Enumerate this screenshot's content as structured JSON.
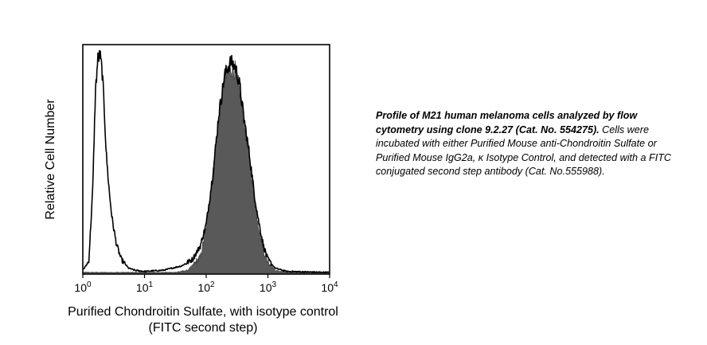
{
  "chart_data": {
    "type": "area",
    "xscale": "log",
    "xlim": [
      1,
      10000
    ],
    "ylim": [
      0,
      1
    ],
    "grid": false,
    "legend": "none",
    "xlabel_line1": "Purified Chondroitin Sulfate, with isotype control",
    "xlabel_line2": "(FITC second step)",
    "ylabel": "Relative Cell Number",
    "x_ticks": [
      {
        "value": 1,
        "base": "10",
        "exp": "0"
      },
      {
        "value": 10,
        "base": "10",
        "exp": "1"
      },
      {
        "value": 100,
        "base": "10",
        "exp": "2"
      },
      {
        "value": 1000,
        "base": "10",
        "exp": "3"
      },
      {
        "value": 10000,
        "base": "10",
        "exp": "4"
      }
    ],
    "series": [
      {
        "style": "filled",
        "color": "#595959",
        "x": [
          1,
          30,
          50,
          80,
          100,
          130,
          160,
          200,
          250,
          300,
          350,
          400,
          500,
          600,
          700,
          850,
          1000,
          1300,
          2000
        ],
        "y": [
          0,
          0,
          0.01,
          0.07,
          0.2,
          0.46,
          0.7,
          0.88,
          0.93,
          0.92,
          0.82,
          0.7,
          0.52,
          0.34,
          0.22,
          0.1,
          0.05,
          0.01,
          0
        ]
      },
      {
        "style": "outline",
        "color": "#000000",
        "x": [
          1,
          1.25,
          1.45,
          1.6,
          1.75,
          1.9,
          2.05,
          2.2,
          2.4,
          2.7,
          3.0,
          3.5,
          4.2,
          5.5,
          7,
          10,
          20,
          40,
          60,
          80,
          100,
          130,
          160,
          200,
          250,
          300,
          350,
          400,
          500,
          600,
          700,
          850,
          1000,
          1300,
          2000,
          10000
        ],
        "y": [
          0.01,
          0.05,
          0.38,
          0.82,
          0.97,
          0.99,
          0.92,
          0.78,
          0.54,
          0.36,
          0.24,
          0.13,
          0.06,
          0.02,
          0.01,
          0.005,
          0.01,
          0.03,
          0.06,
          0.12,
          0.22,
          0.46,
          0.72,
          0.9,
          0.96,
          0.93,
          0.85,
          0.72,
          0.54,
          0.36,
          0.24,
          0.12,
          0.06,
          0.02,
          0.005,
          0
        ]
      }
    ]
  },
  "caption": {
    "bold": "Profile of M21 human melanoma cells analyzed by flow cytometry using clone 9.2.27 (Cat. No. 554275).",
    "text": " Cells were incubated with either Purified Mouse anti-Chondroitin Sulfate or Purified Mouse IgG2a, κ Isotype Control, and detected with a FITC conjugated second step antibody (Cat. No.555988)."
  }
}
